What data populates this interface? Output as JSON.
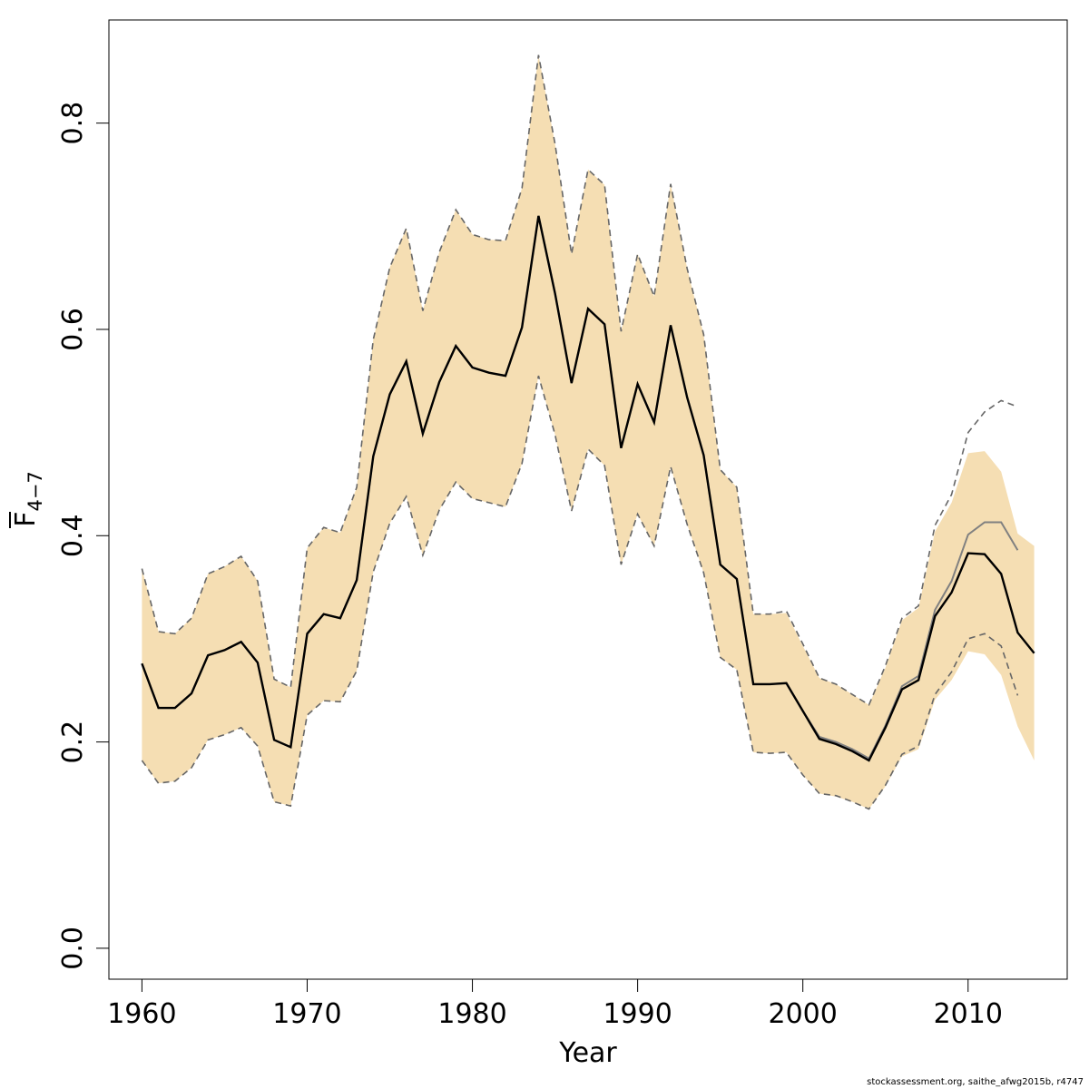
{
  "chart_data": {
    "type": "line",
    "xlabel": "Year",
    "ylabel_main": "F",
    "ylabel_sub": "4−7",
    "xlim": [
      1958,
      2016
    ],
    "ylim": [
      -0.03,
      0.9
    ],
    "xticks": [
      1960,
      1970,
      1980,
      1990,
      2000,
      2010
    ],
    "yticks": [
      0.0,
      0.2,
      0.4,
      0.6,
      0.8
    ],
    "ytick_labels": [
      "0.0",
      "0.2",
      "0.4",
      "0.6",
      "0.8"
    ],
    "band_color": "#f5deb3",
    "current": {
      "x": [
        1960,
        1961,
        1962,
        1963,
        1964,
        1965,
        1966,
        1967,
        1968,
        1969,
        1970,
        1971,
        1972,
        1973,
        1974,
        1975,
        1976,
        1977,
        1978,
        1979,
        1980,
        1981,
        1982,
        1983,
        1984,
        1985,
        1986,
        1987,
        1988,
        1989,
        1990,
        1991,
        1992,
        1993,
        1994,
        1995,
        1996,
        1997,
        1998,
        1999,
        2000,
        2001,
        2002,
        2003,
        2004,
        2005,
        2006,
        2007,
        2008,
        2009,
        2010,
        2011,
        2012,
        2013,
        2014
      ],
      "estimate": [
        0.276,
        0.233,
        0.233,
        0.247,
        0.284,
        0.289,
        0.297,
        0.277,
        0.202,
        0.195,
        0.305,
        0.324,
        0.32,
        0.357,
        0.477,
        0.537,
        0.569,
        0.499,
        0.549,
        0.584,
        0.563,
        0.558,
        0.555,
        0.602,
        0.71,
        0.635,
        0.548,
        0.62,
        0.605,
        0.485,
        0.547,
        0.51,
        0.604,
        0.534,
        0.478,
        0.372,
        0.358,
        0.256,
        0.256,
        0.257,
        0.23,
        0.203,
        0.198,
        0.191,
        0.182,
        0.214,
        0.251,
        0.26,
        0.322,
        0.345,
        0.383,
        0.382,
        0.363,
        0.306,
        0.286
      ],
      "upper": [
        0.368,
        0.307,
        0.305,
        0.32,
        0.363,
        0.37,
        0.38,
        0.356,
        0.261,
        0.253,
        0.388,
        0.408,
        0.403,
        0.447,
        0.59,
        0.66,
        0.698,
        0.618,
        0.675,
        0.716,
        0.692,
        0.687,
        0.686,
        0.737,
        0.866,
        0.78,
        0.673,
        0.755,
        0.74,
        0.598,
        0.673,
        0.632,
        0.741,
        0.659,
        0.595,
        0.464,
        0.447,
        0.324,
        0.324,
        0.325,
        0.293,
        0.262,
        0.256,
        0.246,
        0.236,
        0.272,
        0.318,
        0.33,
        0.404,
        0.432,
        0.48,
        0.482,
        0.462,
        0.402,
        0.39
      ],
      "lower": [
        0.182,
        0.16,
        0.162,
        0.175,
        0.202,
        0.207,
        0.214,
        0.196,
        0.142,
        0.138,
        0.226,
        0.24,
        0.239,
        0.269,
        0.365,
        0.412,
        0.438,
        0.381,
        0.425,
        0.452,
        0.436,
        0.432,
        0.428,
        0.47,
        0.555,
        0.498,
        0.424,
        0.484,
        0.468,
        0.372,
        0.421,
        0.39,
        0.467,
        0.411,
        0.364,
        0.282,
        0.27,
        0.19,
        0.189,
        0.19,
        0.168,
        0.15,
        0.147,
        0.142,
        0.135,
        0.157,
        0.186,
        0.193,
        0.241,
        0.26,
        0.288,
        0.285,
        0.265,
        0.215,
        0.182
      ]
    },
    "previous": {
      "x": [
        1960,
        1961,
        1962,
        1963,
        1964,
        1965,
        1966,
        1967,
        1968,
        1969,
        1970,
        1971,
        1972,
        1973,
        1974,
        1975,
        1976,
        1977,
        1978,
        1979,
        1980,
        1981,
        1982,
        1983,
        1984,
        1985,
        1986,
        1987,
        1988,
        1989,
        1990,
        1991,
        1992,
        1993,
        1994,
        1995,
        1996,
        1997,
        1998,
        1999,
        2000,
        2001,
        2002,
        2003,
        2004,
        2005,
        2006,
        2007,
        2008,
        2009,
        2010,
        2011,
        2012,
        2013
      ],
      "estimate": [
        0.276,
        0.233,
        0.233,
        0.247,
        0.284,
        0.289,
        0.297,
        0.277,
        0.202,
        0.195,
        0.305,
        0.324,
        0.32,
        0.357,
        0.477,
        0.537,
        0.569,
        0.499,
        0.549,
        0.584,
        0.563,
        0.558,
        0.555,
        0.602,
        0.71,
        0.635,
        0.548,
        0.62,
        0.605,
        0.485,
        0.547,
        0.51,
        0.604,
        0.534,
        0.478,
        0.372,
        0.358,
        0.256,
        0.256,
        0.257,
        0.23,
        0.205,
        0.2,
        0.193,
        0.184,
        0.216,
        0.254,
        0.264,
        0.328,
        0.356,
        0.401,
        0.413,
        0.413,
        0.386
      ],
      "upper": [
        0.368,
        0.307,
        0.305,
        0.32,
        0.363,
        0.37,
        0.38,
        0.356,
        0.261,
        0.253,
        0.388,
        0.408,
        0.403,
        0.447,
        0.59,
        0.66,
        0.698,
        0.618,
        0.675,
        0.716,
        0.692,
        0.687,
        0.686,
        0.737,
        0.866,
        0.78,
        0.673,
        0.755,
        0.74,
        0.598,
        0.673,
        0.632,
        0.741,
        0.659,
        0.595,
        0.464,
        0.447,
        0.324,
        0.324,
        0.327,
        0.295,
        0.262,
        0.256,
        0.246,
        0.236,
        0.274,
        0.32,
        0.332,
        0.41,
        0.44,
        0.5,
        0.52,
        0.531,
        0.525
      ],
      "lower": [
        0.182,
        0.16,
        0.162,
        0.175,
        0.202,
        0.207,
        0.214,
        0.196,
        0.142,
        0.138,
        0.226,
        0.24,
        0.239,
        0.269,
        0.365,
        0.412,
        0.438,
        0.381,
        0.425,
        0.452,
        0.436,
        0.432,
        0.428,
        0.47,
        0.555,
        0.498,
        0.424,
        0.484,
        0.468,
        0.372,
        0.421,
        0.39,
        0.467,
        0.411,
        0.364,
        0.282,
        0.27,
        0.19,
        0.189,
        0.19,
        0.168,
        0.15,
        0.148,
        0.142,
        0.135,
        0.158,
        0.188,
        0.196,
        0.246,
        0.268,
        0.3,
        0.305,
        0.293,
        0.245
      ]
    }
  },
  "footer": "stockassessment.org, saithe_afwg2015b, r4747"
}
